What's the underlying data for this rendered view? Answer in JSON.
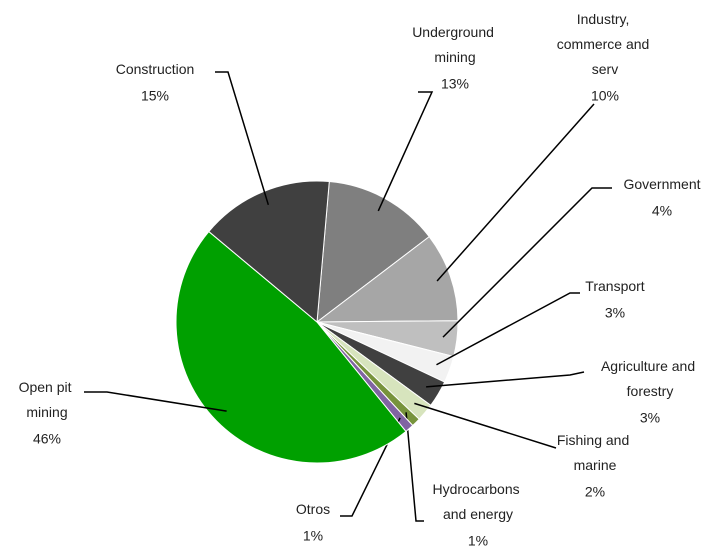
{
  "chart_data": {
    "type": "pie",
    "categories": [
      "Underground mining",
      "Industry, commerce and serv",
      "Government",
      "Transport",
      "Agriculture and forestry",
      "Fishing and marine",
      "Hydrocarbons and energy",
      "Otros",
      "Open pit mining",
      "Construction"
    ],
    "values": [
      13,
      10,
      4,
      3,
      3,
      2,
      1,
      1,
      46,
      15
    ],
    "value_labels": [
      "13%",
      "10%",
      "4%",
      "3%",
      "3%",
      "2%",
      "1%",
      "1%",
      "46%",
      "15%"
    ],
    "colors": [
      "#7f7f7f",
      "#a6a6a6",
      "#bfbfbf",
      "#f2f2f2",
      "#404040",
      "#d7e4bd",
      "#77933c",
      "#8064a2",
      "#00a000",
      "#404040"
    ]
  }
}
